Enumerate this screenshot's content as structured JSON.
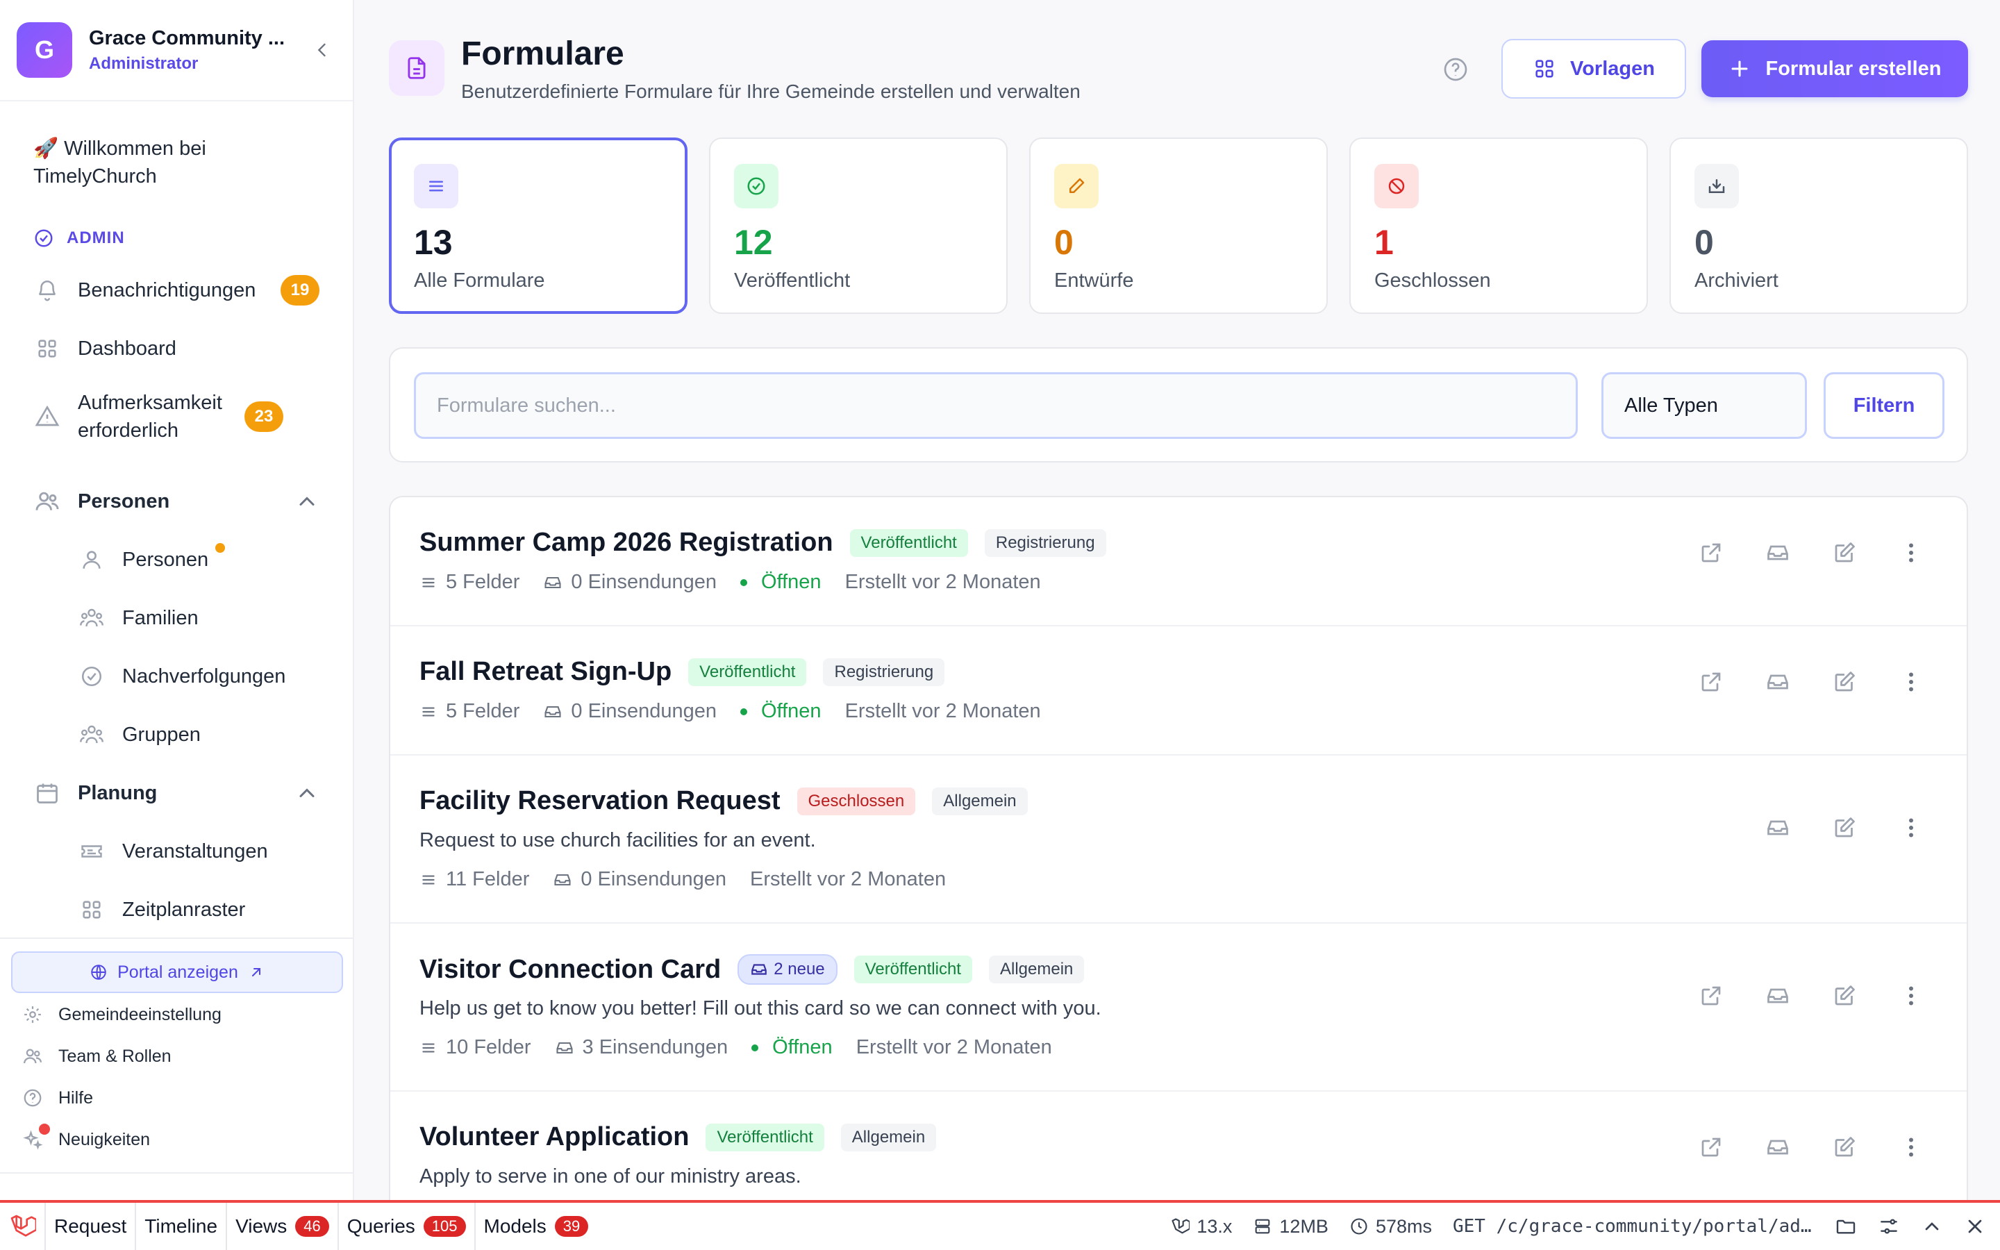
{
  "org": {
    "initial": "G",
    "name": "Grace Community ...",
    "role": "Administrator"
  },
  "welcome": "🚀 Willkommen bei TimelyChurch",
  "nav": {
    "section_admin": "ADMIN",
    "notifications": {
      "label": "Benachrichtigungen",
      "badge": "19"
    },
    "dashboard": {
      "label": "Dashboard"
    },
    "attention": {
      "label": "Aufmerksamkeit erforderlich",
      "badge": "23"
    },
    "people_group": {
      "label": "Personen"
    },
    "people_items": [
      {
        "label": "Personen",
        "icon": "user-icon"
      },
      {
        "label": "Familien",
        "icon": "family-icon"
      },
      {
        "label": "Nachverfolgungen",
        "icon": "check-circle-icon"
      },
      {
        "label": "Gruppen",
        "icon": "groups-icon"
      }
    ],
    "planning_group": {
      "label": "Planung"
    },
    "planning_items": [
      {
        "label": "Veranstaltungen",
        "icon": "ticket-icon"
      },
      {
        "label": "Zeitplanraster",
        "icon": "grid-icon"
      }
    ],
    "portal": "Portal anzeigen",
    "footer": [
      {
        "label": "Gemeindeeinstellung",
        "icon": "gear-icon"
      },
      {
        "label": "Team & Rollen",
        "icon": "users-icon"
      },
      {
        "label": "Hilfe",
        "icon": "help-icon"
      },
      {
        "label": "Neuigkeiten",
        "icon": "sparkle-icon"
      }
    ]
  },
  "header": {
    "title": "Formulare",
    "subtitle": "Benutzerdefinierte Formulare für Ihre Gemeinde erstellen und verwalten",
    "templates_button": "Vorlagen",
    "create_button": "Formular erstellen"
  },
  "stats": [
    {
      "value": "13",
      "label": "Alle Formulare",
      "color": "#111827",
      "bg": "#ede9fe",
      "fg": "#6366f1"
    },
    {
      "value": "12",
      "label": "Veröffentlicht",
      "color": "#16a34a",
      "bg": "#dcfce7",
      "fg": "#16a34a"
    },
    {
      "value": "0",
      "label": "Entwürfe",
      "color": "#d97706",
      "bg": "#fef3c7",
      "fg": "#d97706"
    },
    {
      "value": "1",
      "label": "Geschlossen",
      "color": "#dc2626",
      "bg": "#fee2e2",
      "fg": "#dc2626"
    },
    {
      "value": "0",
      "label": "Archiviert",
      "color": "#4b5563",
      "bg": "#f3f4f6",
      "fg": "#4b5563"
    }
  ],
  "search": {
    "placeholder": "Formulare suchen...",
    "type_value": "Alle Typen",
    "filter_button": "Filtern"
  },
  "forms": [
    {
      "title": "Summer Camp 2026 Registration",
      "new_badge": "",
      "status": "Veröffentlicht",
      "status_kind": "pub",
      "type": "Registrierung",
      "description": "",
      "fields": "5 Felder",
      "submissions": "0 Einsendungen",
      "open": "Öffnen",
      "created": "Erstellt vor 2 Monaten"
    },
    {
      "title": "Fall Retreat Sign-Up",
      "new_badge": "",
      "status": "Veröffentlicht",
      "status_kind": "pub",
      "type": "Registrierung",
      "description": "",
      "fields": "5 Felder",
      "submissions": "0 Einsendungen",
      "open": "Öffnen",
      "created": "Erstellt vor 2 Monaten"
    },
    {
      "title": "Facility Reservation Request",
      "new_badge": "",
      "status": "Geschlossen",
      "status_kind": "closed",
      "type": "Allgemein",
      "description": "Request to use church facilities for an event.",
      "fields": "11 Felder",
      "submissions": "0 Einsendungen",
      "open": "",
      "created": "Erstellt vor 2 Monaten"
    },
    {
      "title": "Visitor Connection Card",
      "new_badge": "2 neue",
      "status": "Veröffentlicht",
      "status_kind": "pub",
      "type": "Allgemein",
      "description": "Help us get to know you better! Fill out this card so we can connect with you.",
      "fields": "10 Felder",
      "submissions": "3 Einsendungen",
      "open": "Öffnen",
      "created": "Erstellt vor 2 Monaten"
    },
    {
      "title": "Volunteer Application",
      "new_badge": "",
      "status": "Veröffentlicht",
      "status_kind": "pub",
      "type": "Allgemein",
      "description": "Apply to serve in one of our ministry areas.",
      "fields": "",
      "submissions": "",
      "open": "",
      "created": ""
    }
  ],
  "debugbar": {
    "tabs": [
      {
        "label": "Request",
        "badge": ""
      },
      {
        "label": "Timeline",
        "badge": ""
      },
      {
        "label": "Views",
        "badge": "46"
      },
      {
        "label": "Queries",
        "badge": "105"
      },
      {
        "label": "Models",
        "badge": "39"
      }
    ],
    "version": "13.x",
    "memory": "12MB",
    "time": "578ms",
    "request": "GET /c/grace-community/portal/admin/forms"
  }
}
